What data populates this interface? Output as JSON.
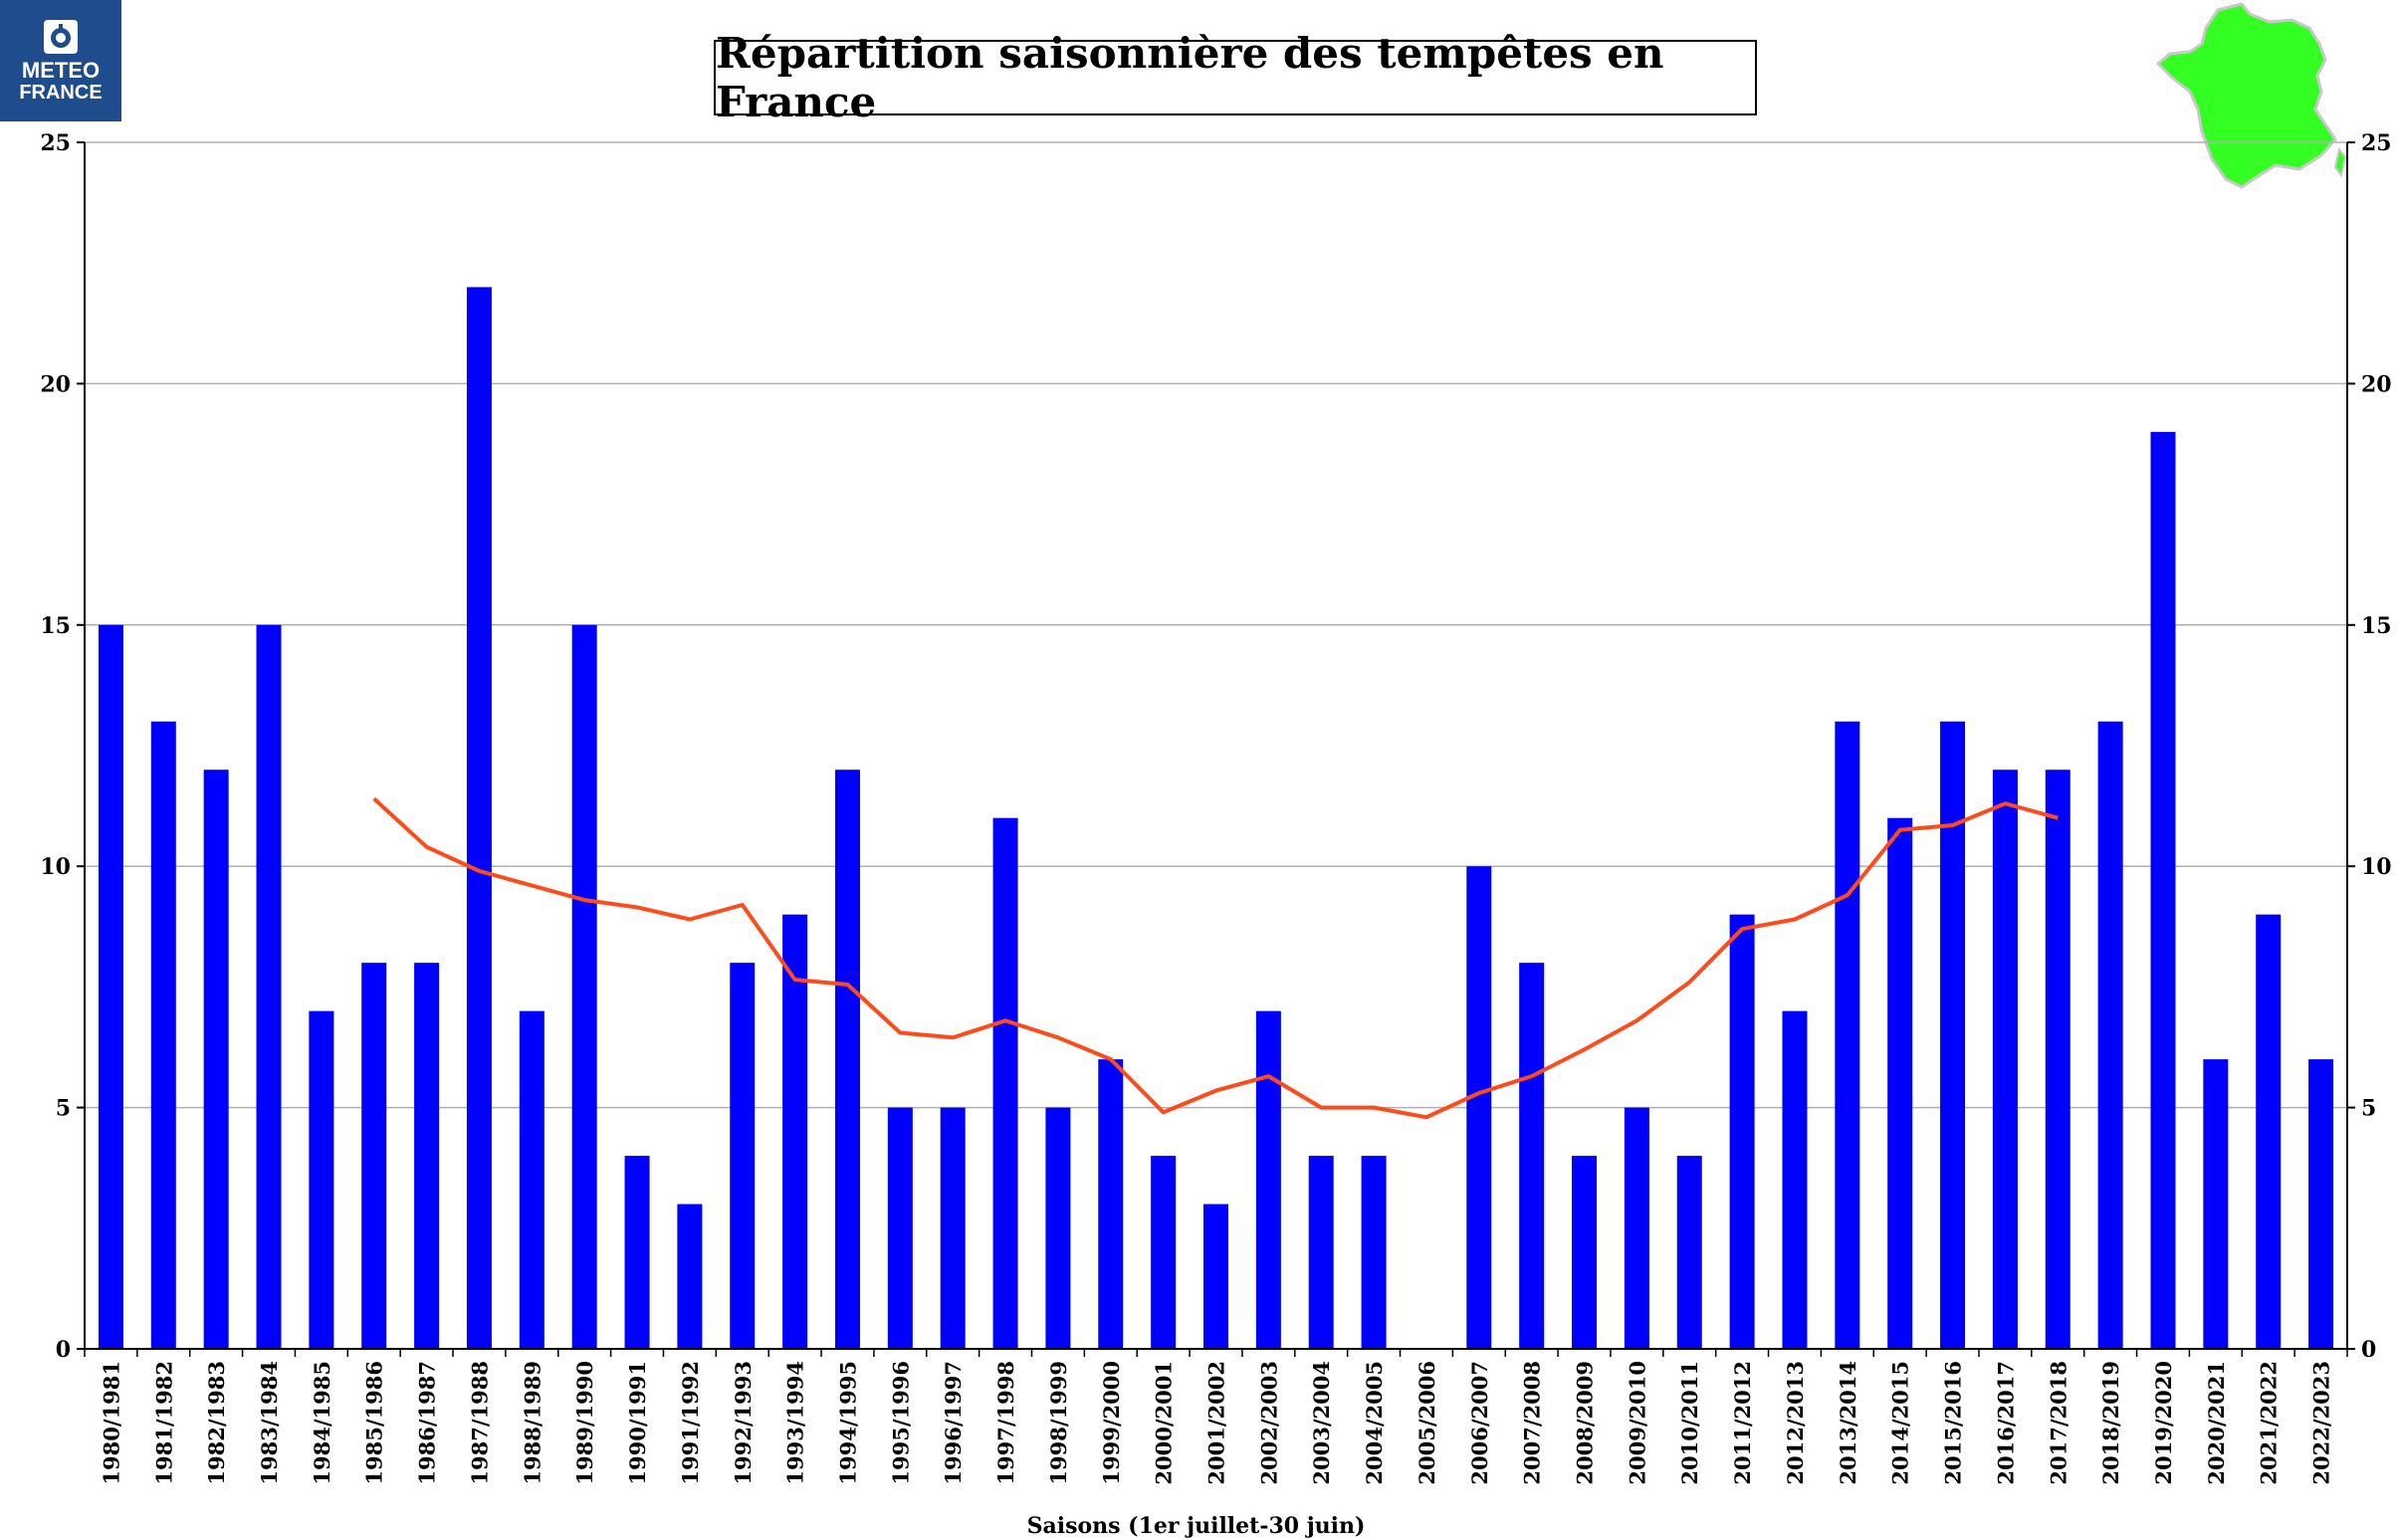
{
  "logo": {
    "line1": "METEO",
    "line2": "FRANCE"
  },
  "colors": {
    "bar": "#0000ff",
    "line": "#ff4a1a",
    "map": "#33ff22",
    "logo_bg": "#1e4c8c",
    "grid": "#b0b0b0"
  },
  "chart_data": {
    "type": "bar",
    "title": "Répartition saisonnière des tempêtes en France",
    "xlabel": "Saisons (1er juillet-30 juin)",
    "ylabel": "",
    "ylim": [
      0,
      25
    ],
    "yticks": [
      0,
      5,
      10,
      15,
      20,
      25
    ],
    "grid": true,
    "secondary_axis": {
      "ylim": [
        0,
        25
      ],
      "yticks": [
        0,
        5,
        10,
        15,
        20,
        25
      ]
    },
    "categories": [
      "1980/1981",
      "1981/1982",
      "1982/1983",
      "1983/1984",
      "1984/1985",
      "1985/1986",
      "1986/1987",
      "1987/1988",
      "1988/1989",
      "1989/1990",
      "1990/1991",
      "1991/1992",
      "1992/1993",
      "1993/1994",
      "1994/1995",
      "1995/1996",
      "1996/1997",
      "1997/1998",
      "1998/1999",
      "1999/2000",
      "2000/2001",
      "2001/2002",
      "2002/2003",
      "2003/2004",
      "2004/2005",
      "2005/2006",
      "2006/2007",
      "2007/2008",
      "2008/2009",
      "2009/2010",
      "2010/2011",
      "2011/2012",
      "2012/2013",
      "2013/2014",
      "2014/2015",
      "2015/2016",
      "2016/2017",
      "2017/2018",
      "2018/2019",
      "2019/2020",
      "2020/2021",
      "2021/2022",
      "2022/2023"
    ],
    "series": [
      {
        "type": "bar",
        "values": [
          15,
          13,
          12,
          15,
          7,
          8,
          8,
          22,
          7,
          15,
          4,
          3,
          8,
          9,
          12,
          5,
          5,
          11,
          5,
          6,
          4,
          3,
          7,
          4,
          4,
          0,
          10,
          8,
          4,
          5,
          4,
          9,
          7,
          13,
          11,
          13,
          12,
          12,
          13,
          19,
          6,
          9,
          6
        ]
      },
      {
        "type": "line",
        "values": [
          null,
          null,
          null,
          null,
          null,
          11.4,
          10.4,
          9.9,
          9.6,
          9.3,
          9.15,
          8.9,
          9.2,
          7.65,
          7.55,
          6.55,
          6.45,
          6.8,
          6.45,
          6.0,
          4.9,
          5.35,
          5.65,
          5.0,
          5.0,
          4.8,
          5.3,
          5.65,
          6.2,
          6.8,
          7.6,
          8.7,
          8.9,
          9.4,
          10.75,
          10.85,
          11.3,
          11.0,
          null,
          null,
          null,
          null,
          null
        ]
      }
    ]
  }
}
